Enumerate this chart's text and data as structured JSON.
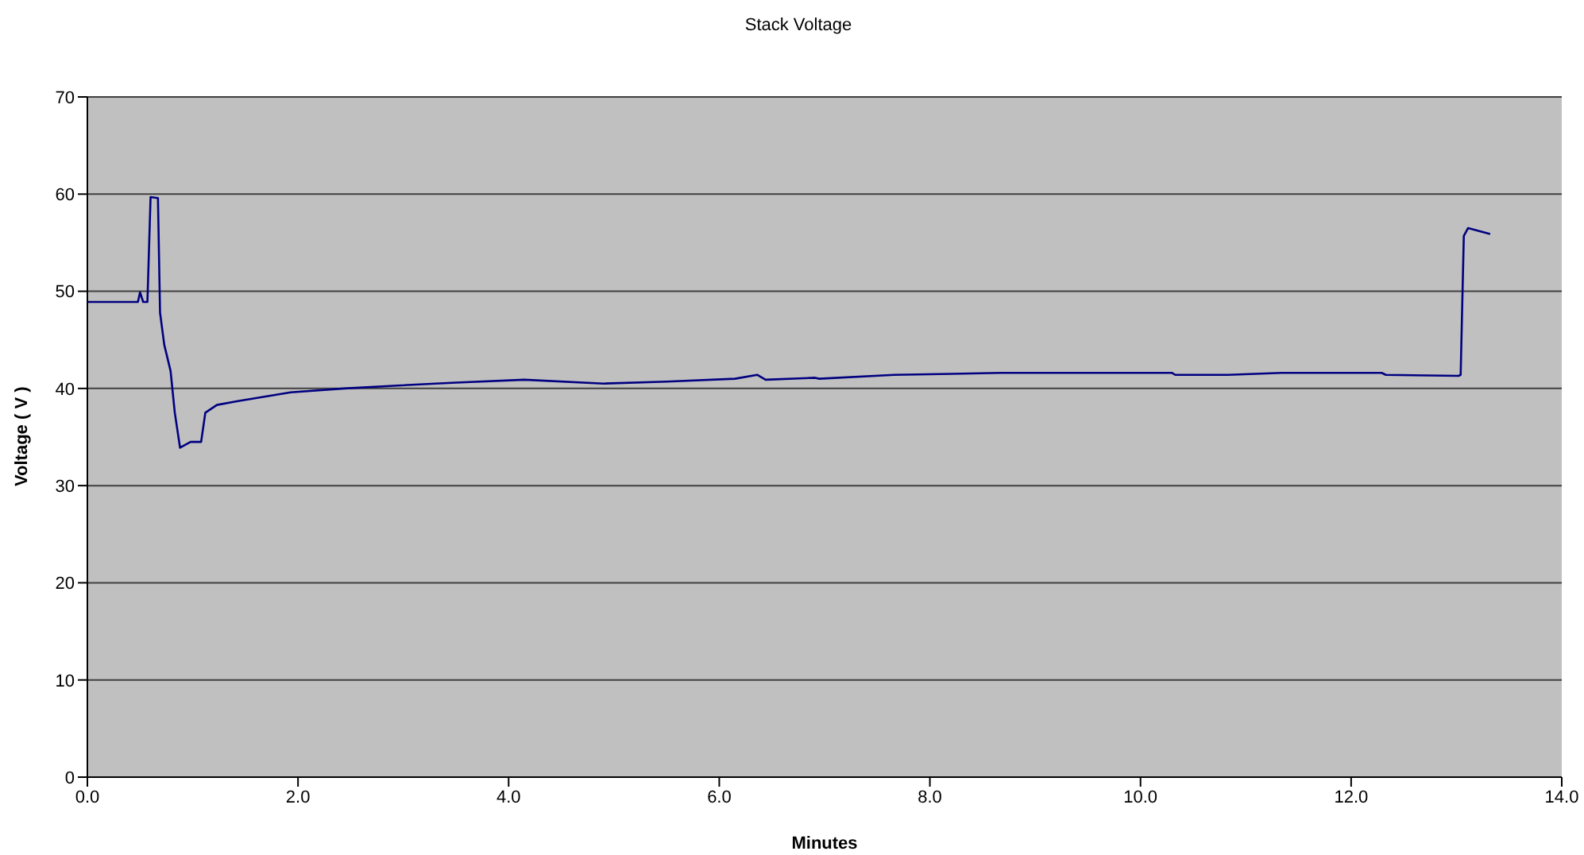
{
  "chart_data": {
    "type": "line",
    "title": "Stack Voltage",
    "xlabel": "Minutes",
    "ylabel": "Voltage ( V )",
    "xlim": [
      0,
      14
    ],
    "xticks": [
      {
        "value": 0,
        "label": "0.0"
      },
      {
        "value": 2,
        "label": "2.0"
      },
      {
        "value": 4,
        "label": "4.0"
      },
      {
        "value": 6,
        "label": "6.0"
      },
      {
        "value": 8,
        "label": "8.0"
      },
      {
        "value": 10,
        "label": "10.0"
      },
      {
        "value": 12,
        "label": "12.0"
      },
      {
        "value": 14,
        "label": "14.0"
      }
    ],
    "ylim": [
      0,
      70
    ],
    "yticks": [
      0,
      10,
      20,
      30,
      40,
      50,
      60,
      70
    ],
    "grid": "y",
    "marker": "none",
    "line_style": "solid",
    "series": [
      {
        "color": "#000080",
        "x": [
          0,
          0.48,
          0.5,
          0.53,
          0.57,
          0.6,
          0.67,
          0.69,
          0.73,
          0.79,
          0.83,
          0.88,
          0.98,
          1.08,
          1.12,
          1.23,
          1.43,
          1.93,
          2.44,
          2.94,
          3.5,
          4.15,
          4.9,
          5.5,
          6.15,
          6.36,
          6.44,
          6.91,
          6.95,
          7.66,
          8.2,
          8.67,
          9.5,
          10.3,
          10.33,
          10.83,
          11.34,
          12.29,
          12.33,
          13.02,
          13.04,
          13.07,
          13.11,
          13.32
        ],
        "values": [
          48.9,
          48.9,
          49.9,
          48.9,
          48.9,
          59.7,
          59.6,
          47.8,
          44.5,
          41.8,
          37.5,
          33.9,
          34.5,
          34.5,
          37.5,
          38.3,
          38.7,
          39.6,
          40.0,
          40.3,
          40.6,
          40.9,
          40.5,
          40.7,
          41.0,
          41.4,
          40.9,
          41.1,
          41.0,
          41.4,
          41.5,
          41.6,
          41.6,
          41.6,
          41.4,
          41.4,
          41.6,
          41.6,
          41.4,
          41.3,
          41.4,
          55.7,
          56.5,
          55.9
        ]
      }
    ]
  }
}
